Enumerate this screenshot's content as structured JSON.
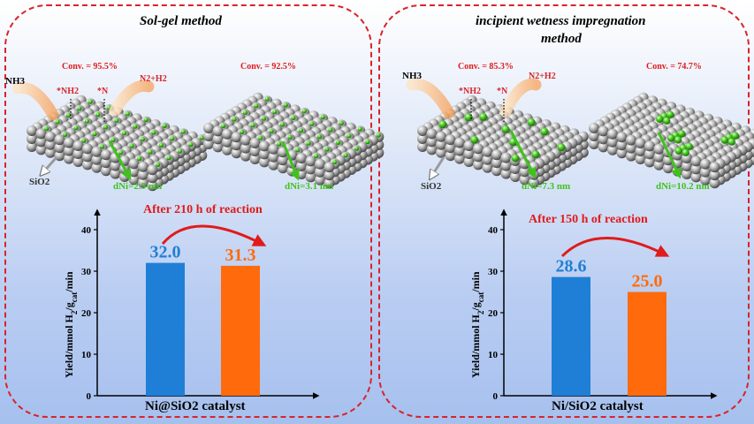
{
  "left": {
    "title": "Sol-gel method",
    "conv_a": "Conv. = 95.5%",
    "conv_b": "Conv. = 92.5%",
    "nh3": "NH3",
    "nh2": "*NH2",
    "n": "*N",
    "n2h2": "N2+H2",
    "sio2": "SiO2",
    "d_a": "dNi=2.9 nm",
    "d_b": "dNi=3.1 nm",
    "after": "After 210 h of reaction",
    "xlabel": "Ni@SiO2 catalyst"
  },
  "right": {
    "title_line1": "incipient wetness impregnation",
    "title_line2": "method",
    "conv_a": "Conv. = 85.3%",
    "conv_b": "Conv. = 74.7%",
    "nh3": "NH3",
    "nh2": "*NH2",
    "n": "*N",
    "n2h2": "N2+H2",
    "sio2": "SiO2",
    "d_a": "dNi=7.3 nm",
    "d_b": "dNi=10.2 nm",
    "after": "After 150 h of reaction",
    "xlabel": "Ni/SiO2 catalyst"
  },
  "colors": {
    "blue": "#1f7fd6",
    "orange": "#ff6a0d",
    "red": "#e01b1b",
    "green": "#3fc21c"
  },
  "chart_data": [
    {
      "type": "bar",
      "categories": [
        "",
        ""
      ],
      "values": [
        32.0,
        31.3
      ],
      "value_labels": [
        "32.0",
        "31.3"
      ],
      "ylabel": "Yield/mmol H2/gcat/min",
      "xlabel": "Ni@SiO2 catalyst",
      "ylim": [
        0,
        40
      ],
      "yticks": [
        "0",
        "10",
        "20",
        "30",
        "40"
      ]
    },
    {
      "type": "bar",
      "categories": [
        "",
        ""
      ],
      "values": [
        28.6,
        25.0
      ],
      "value_labels": [
        "28.6",
        "25.0"
      ],
      "ylabel": "Yield/mmol H2/gcat/min",
      "xlabel": "Ni/SiO2 catalyst",
      "ylim": [
        0,
        40
      ],
      "yticks": [
        "0",
        "10",
        "20",
        "30",
        "40"
      ]
    }
  ]
}
